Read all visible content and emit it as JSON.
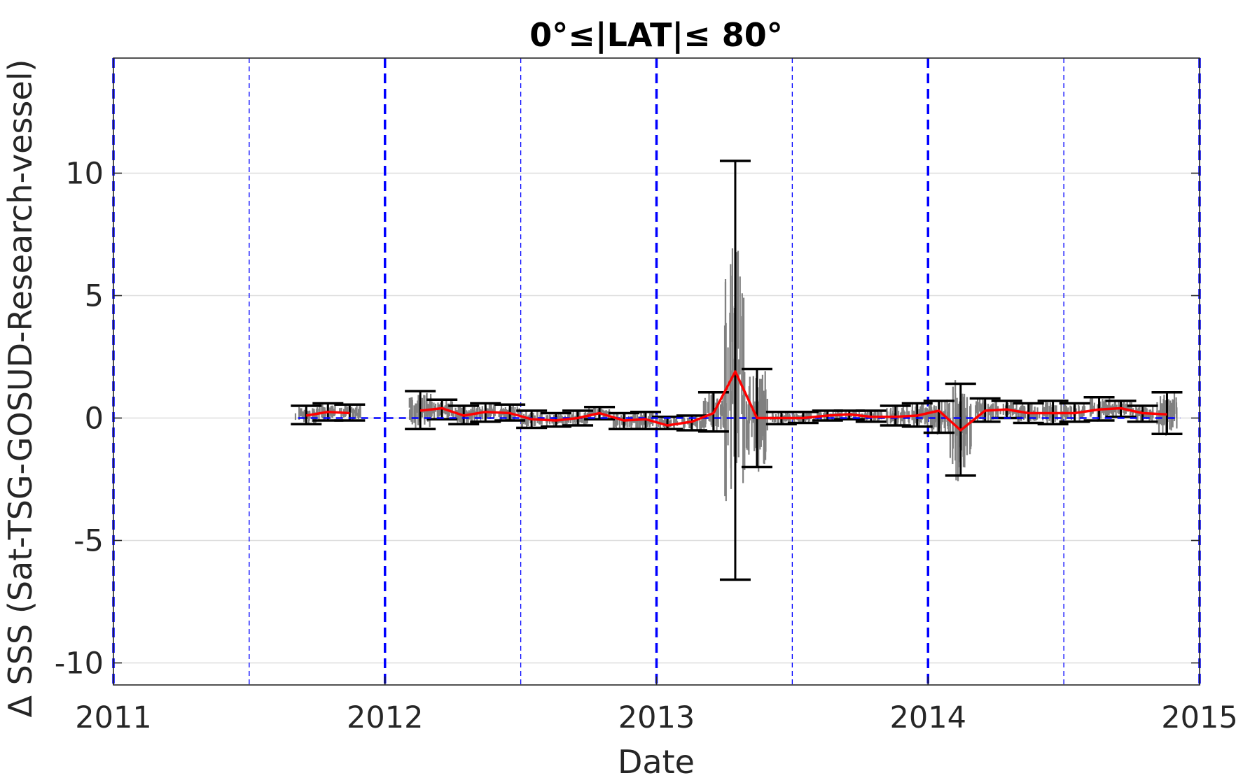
{
  "chart_data": {
    "type": "scatter",
    "title": "0°≤|LAT|≤ 80°",
    "xlabel": "Date",
    "ylabel": "Δ SSS (Sat-TSG-GOSUD-Research-vessel)",
    "xlim": [
      2011.0,
      2015.0
    ],
    "ylim": [
      -10.9,
      14.7
    ],
    "x_ticks": [
      2011,
      2012,
      2013,
      2014,
      2015
    ],
    "x_tick_labels": [
      "2011",
      "2012",
      "2013",
      "2014",
      "2015"
    ],
    "y_ticks": [
      -10,
      -5,
      0,
      5,
      10
    ],
    "y_tick_labels": [
      "-10",
      "-5",
      "0",
      "5",
      "10"
    ],
    "grid": "horizontal",
    "colors": {
      "scatter": "#808080",
      "mean_line": "#ff0000",
      "error_bars": "#000000",
      "reference_lines": "#0000ff",
      "grid": "#dddddd"
    },
    "year_boundaries": [
      2011,
      2012,
      2013,
      2014,
      2015
    ],
    "half_year_lines": [
      2011.5,
      2012.5,
      2013.5,
      2014.5
    ],
    "zero_line": 0,
    "series": [
      {
        "type": "line",
        "x": [
          2011.71,
          2011.79,
          2011.87,
          2012.13,
          2012.21,
          2012.29,
          2012.37,
          2012.46,
          2012.54,
          2012.63,
          2012.71,
          2012.79,
          2012.88,
          2012.96,
          2013.04,
          2013.13,
          2013.21,
          2013.29,
          2013.37,
          2013.46,
          2013.54,
          2013.63,
          2013.71,
          2013.79,
          2013.88,
          2013.96,
          2014.04,
          2014.12,
          2014.21,
          2014.29,
          2014.37,
          2014.46,
          2014.54,
          2014.63,
          2014.71,
          2014.79,
          2014.88
        ],
        "y": [
          0.1,
          0.25,
          0.2,
          0.3,
          0.4,
          0.1,
          0.25,
          0.2,
          -0.05,
          -0.1,
          0.0,
          0.2,
          -0.1,
          -0.05,
          -0.3,
          -0.15,
          0.2,
          1.9,
          0.0,
          0.0,
          0.0,
          0.1,
          0.15,
          0.05,
          0.05,
          0.1,
          0.3,
          -0.5,
          0.3,
          0.35,
          0.2,
          0.2,
          0.2,
          0.35,
          0.4,
          0.2,
          0.15
        ]
      },
      {
        "type": "errorbar",
        "x": [
          2011.71,
          2011.79,
          2011.87,
          2012.13,
          2012.21,
          2012.29,
          2012.37,
          2012.46,
          2012.54,
          2012.63,
          2012.71,
          2012.79,
          2012.88,
          2012.96,
          2013.04,
          2013.13,
          2013.21,
          2013.29,
          2013.37,
          2013.46,
          2013.54,
          2013.63,
          2013.71,
          2013.79,
          2013.88,
          2013.96,
          2014.04,
          2014.12,
          2014.21,
          2014.29,
          2014.37,
          2014.46,
          2014.54,
          2014.63,
          2014.71,
          2014.79,
          2014.88
        ],
        "upper": [
          0.5,
          0.6,
          0.55,
          1.1,
          0.75,
          0.5,
          0.6,
          0.55,
          0.3,
          0.2,
          0.3,
          0.45,
          0.2,
          0.25,
          0.05,
          0.1,
          1.05,
          10.5,
          2.0,
          0.25,
          0.25,
          0.3,
          0.3,
          0.3,
          0.5,
          0.6,
          0.7,
          1.4,
          0.8,
          0.7,
          0.6,
          0.7,
          0.6,
          0.85,
          0.7,
          0.5,
          1.05
        ],
        "lower": [
          -0.25,
          -0.1,
          -0.1,
          -0.45,
          -0.05,
          -0.25,
          -0.15,
          -0.1,
          -0.4,
          -0.35,
          -0.3,
          -0.05,
          -0.45,
          -0.45,
          -0.45,
          -0.5,
          -0.55,
          -6.6,
          -2.0,
          -0.25,
          -0.2,
          -0.1,
          -0.05,
          -0.15,
          -0.3,
          -0.35,
          -0.6,
          -2.35,
          -0.15,
          0.0,
          -0.2,
          -0.25,
          -0.15,
          -0.1,
          0.05,
          -0.15,
          -0.65
        ]
      }
    ]
  }
}
